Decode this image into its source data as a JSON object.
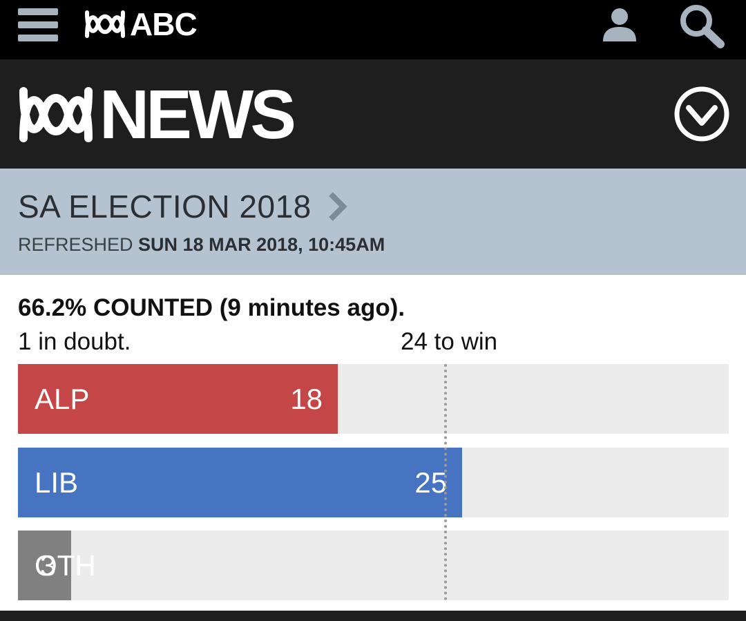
{
  "topbar": {
    "menu_icon": "hamburger-menu-icon",
    "brand": "ABC",
    "user_icon": "user-icon",
    "search_icon": "search-icon"
  },
  "news_header": {
    "brand": "NEWS",
    "expand_icon": "chevron-down-circle-icon"
  },
  "election": {
    "title": "SA ELECTION 2018",
    "arrow_icon": "chevron-right-icon",
    "refreshed_label": "REFRESHED",
    "refreshed_time": "SUN 18 MAR 2018, 10:45AM"
  },
  "results": {
    "counted": "66.2% COUNTED (9 minutes ago).",
    "in_doubt": "1 in doubt.",
    "to_win_label": "24 to win",
    "to_win": 24,
    "scale_max": 40,
    "parties": [
      {
        "name": "ALP",
        "seats": 18,
        "color": "#c44646"
      },
      {
        "name": "LIB",
        "seats": 25,
        "color": "#4674c0"
      },
      {
        "name": "OTH",
        "seats": 3,
        "color": "#808080"
      }
    ]
  },
  "colors": {
    "topbar_bg": "#000000",
    "newsbar_bg": "#1e1e1e",
    "election_bg": "#b5c2cf",
    "track_bg": "#ececec",
    "icon_grey": "#a7b3bf"
  }
}
